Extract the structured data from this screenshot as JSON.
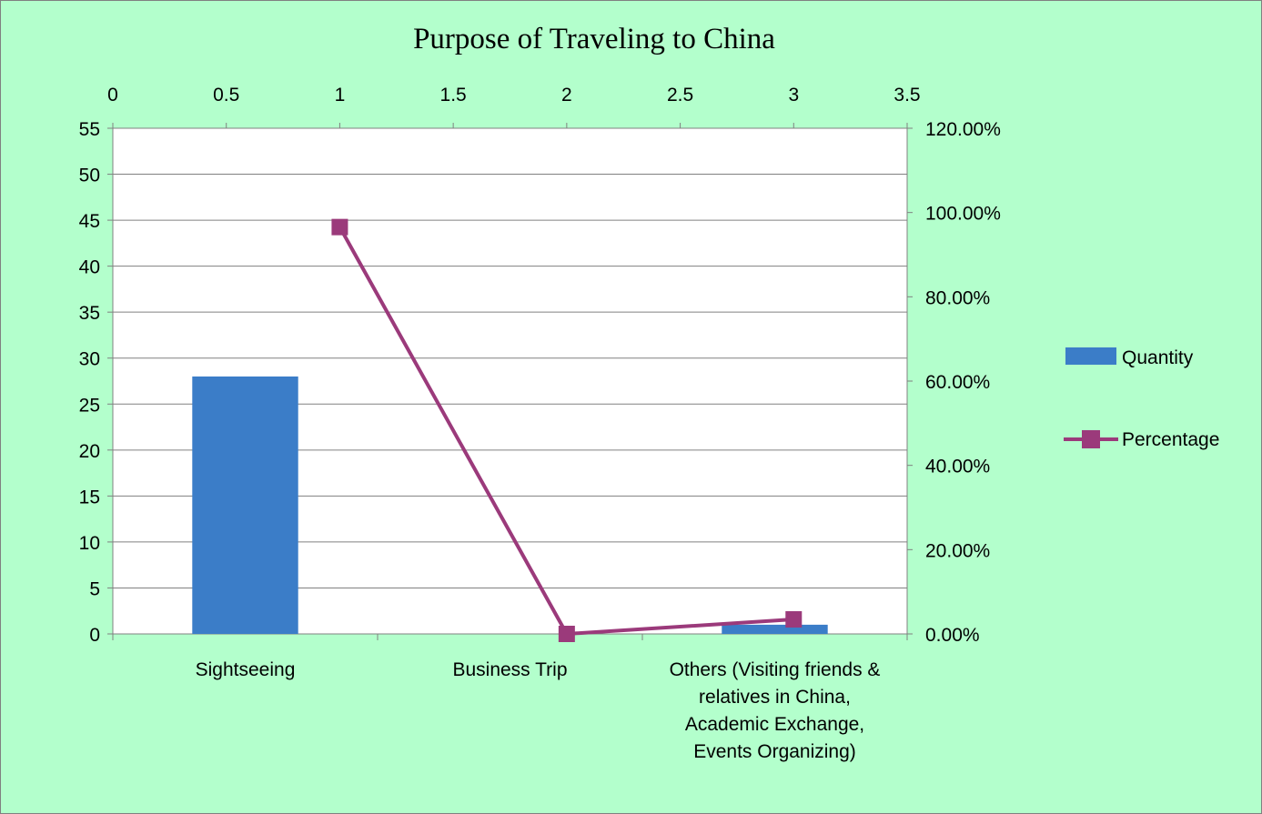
{
  "chart_data": {
    "type": "bar",
    "title": "Purpose of Traveling to China",
    "categories": [
      "Sightseeing",
      "Business Trip",
      [
        "Others (Visiting friends &",
        "relatives in China,",
        "Academic Exchange,",
        "Events Organizing)"
      ]
    ],
    "series": [
      {
        "name": "Quantity",
        "type": "bar",
        "axis": "left",
        "color": "#3b7dc8",
        "values": [
          28,
          0,
          1
        ]
      },
      {
        "name": "Percentage",
        "type": "line",
        "axis": "right",
        "x_axis": "top",
        "color": "#9b3a7b",
        "marker": "square",
        "x": [
          1,
          2,
          3
        ],
        "values": [
          0.9655,
          0,
          0.0345
        ]
      }
    ],
    "left_axis": {
      "ylim": [
        0,
        55
      ],
      "ticks": [
        "0",
        "5",
        "10",
        "15",
        "20",
        "25",
        "30",
        "35",
        "40",
        "45",
        "50",
        "55"
      ]
    },
    "right_axis": {
      "ylim": [
        0,
        1.2
      ],
      "ticks": [
        "0.00%",
        "20.00%",
        "40.00%",
        "60.00%",
        "80.00%",
        "100.00%",
        "120.00%"
      ]
    },
    "top_axis": {
      "xlim": [
        0,
        3.5
      ],
      "ticks": [
        "0",
        "0.5",
        "1",
        "1.5",
        "2",
        "2.5",
        "3",
        "3.5"
      ]
    },
    "grid": true,
    "legend": "right"
  },
  "colors": {
    "background": "#b3ffcc",
    "plot_area": "#ffffff",
    "bar": "#3b7dc8",
    "line": "#9b3a7b"
  }
}
